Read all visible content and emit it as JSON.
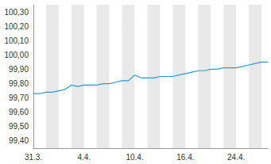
{
  "chart_data": {
    "type": "line",
    "categories": [
      "31.3.",
      null,
      null,
      null,
      null,
      null,
      null,
      null,
      "4.4.",
      null,
      null,
      null,
      null,
      null,
      null,
      null,
      "10.4.",
      null,
      null,
      null,
      null,
      null,
      null,
      null,
      "16.4.",
      null,
      null,
      null,
      null,
      null,
      null,
      null,
      "24.4.",
      null,
      null,
      null,
      null,
      null
    ],
    "values": [
      99.73,
      99.73,
      99.74,
      99.74,
      99.75,
      99.76,
      99.79,
      99.78,
      99.79,
      99.79,
      99.79,
      99.8,
      99.8,
      99.81,
      99.82,
      99.82,
      99.86,
      99.84,
      99.84,
      99.84,
      99.85,
      99.85,
      99.85,
      99.86,
      99.87,
      99.88,
      99.89,
      99.89,
      99.9,
      99.9,
      99.91,
      99.91,
      99.91,
      99.92,
      99.93,
      99.94,
      99.95,
      99.95
    ],
    "color": "#2a9bd8",
    "ylim": [
      99.35,
      100.35
    ],
    "yticks": [
      {
        "value": 99.4,
        "label": "99,40"
      },
      {
        "value": 99.5,
        "label": "99,50"
      },
      {
        "value": 99.6,
        "label": "99,60"
      },
      {
        "value": 99.7,
        "label": "99,70"
      },
      {
        "value": 99.8,
        "label": "99,80"
      },
      {
        "value": 99.9,
        "label": "99,90"
      },
      {
        "value": 100.0,
        "label": "100,00"
      },
      {
        "value": 100.1,
        "label": "100,10"
      },
      {
        "value": 100.2,
        "label": "100,20"
      },
      {
        "value": 100.3,
        "label": "100,30"
      }
    ],
    "grid": true
  }
}
